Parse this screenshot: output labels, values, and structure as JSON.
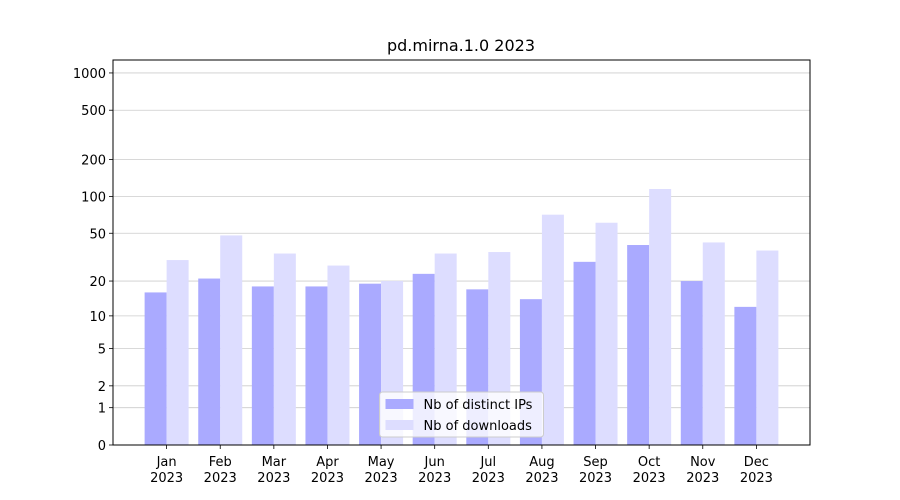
{
  "chart_data": {
    "type": "bar",
    "title": "pd.mirna.1.0 2023",
    "categories": [
      "Jan 2023",
      "Feb 2023",
      "Mar 2023",
      "Apr 2023",
      "May 2023",
      "Jun 2023",
      "Jul 2023",
      "Aug 2023",
      "Sep 2023",
      "Oct 2023",
      "Nov 2023",
      "Dec 2023"
    ],
    "series": [
      {
        "name": "Nb of distinct IPs",
        "color": "#aaaaff",
        "values": [
          16,
          21,
          18,
          18,
          19,
          23,
          17,
          14,
          29,
          40,
          20,
          12
        ]
      },
      {
        "name": "Nb of downloads",
        "color": "#ddddff",
        "values": [
          30,
          48,
          34,
          27,
          20,
          34,
          35,
          71,
          61,
          115,
          42,
          36
        ]
      }
    ],
    "yscale": "log1p",
    "ylim": [
      0,
      1272
    ],
    "yticks": [
      0,
      1,
      2,
      5,
      10,
      20,
      50,
      100,
      200,
      500,
      1000
    ],
    "grid": true,
    "legend": "lower center"
  }
}
